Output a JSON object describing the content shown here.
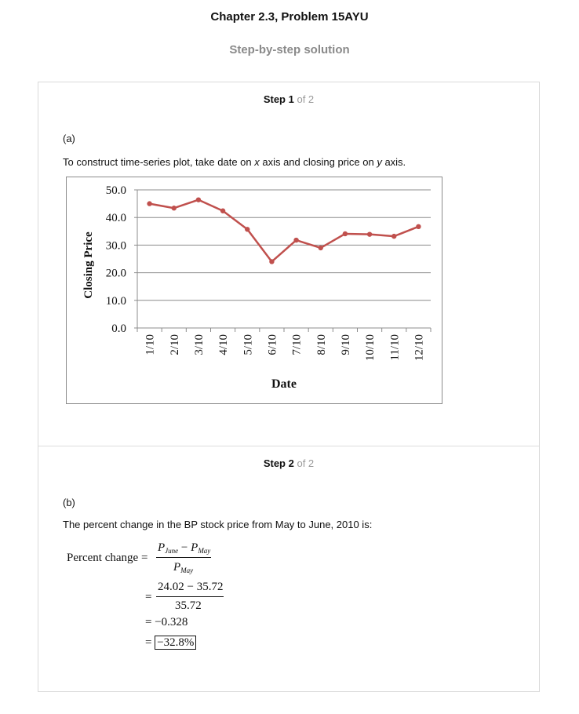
{
  "header": {
    "title": "Chapter 2.3, Problem 15AYU",
    "subtitle": "Step-by-step solution"
  },
  "step1": {
    "word": "Step 1",
    "of": "of 2",
    "part": "(a)",
    "text_before_x": "To construct time-series plot, take date on ",
    "x_var": "x",
    "text_middle": " axis and closing price on ",
    "y_var": "y",
    "text_after": " axis."
  },
  "step2": {
    "word": "Step 2",
    "of": "of 2",
    "part": "(b)",
    "text": "The percent change in the BP stock price from May to June, 2010 is:",
    "lhs": "Percent change =",
    "num_p": "P",
    "num_sub1": "June",
    "minus": " − ",
    "num_sub2": "May",
    "den_p": "P",
    "den_sub": "May",
    "eq": "=",
    "num2": "24.02 − 35.72",
    "den2": "35.72",
    "line3": "= −0.328",
    "line4_eq": "=",
    "line4_box": "−32.8%"
  },
  "chart_data": {
    "type": "line",
    "title": "",
    "xlabel": "Date",
    "ylabel": "Closing Price",
    "categories": [
      "1/10",
      "2/10",
      "3/10",
      "4/10",
      "5/10",
      "6/10",
      "7/10",
      "8/10",
      "9/10",
      "10/10",
      "11/10",
      "12/10"
    ],
    "series": [
      {
        "values": [
          45.0,
          43.4,
          46.4,
          42.4,
          35.72,
          24.02,
          31.8,
          29.0,
          34.1,
          33.9,
          33.2,
          36.7
        ],
        "color": "#c0504d"
      }
    ],
    "yticks": [
      "50.0",
      "40.0",
      "30.0",
      "20.0",
      "10.0",
      "0.0"
    ],
    "ylim": [
      0,
      50
    ],
    "grid": true
  }
}
